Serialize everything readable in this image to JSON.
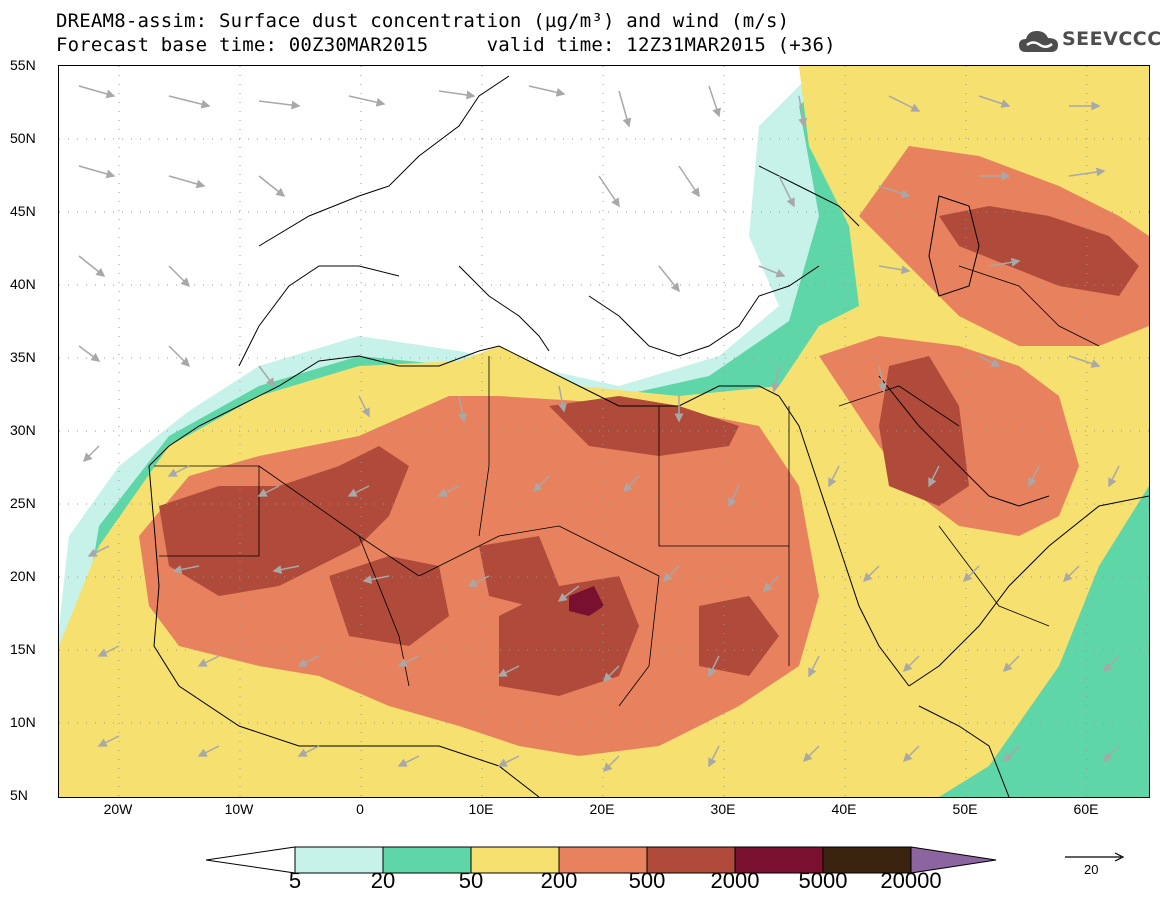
{
  "header": {
    "title_line1": "DREAM8-assim: Surface dust concentration (µg/m³) and wind (m/s)",
    "title_line2": "Forecast base time: 00Z30MAR2015     valid time: 12Z31MAR2015 (+36)"
  },
  "logo": {
    "text": "SEEVCCC"
  },
  "axes": {
    "lat_labels": [
      "55N",
      "50N",
      "45N",
      "40N",
      "35N",
      "30N",
      "25N",
      "20N",
      "15N",
      "10N",
      "5N"
    ],
    "lon_labels": [
      "20W",
      "10W",
      "0",
      "10E",
      "20E",
      "30E",
      "40E",
      "50E",
      "60E"
    ],
    "lat_range": [
      5,
      55
    ],
    "lon_range": [
      -25,
      65
    ]
  },
  "legend": {
    "levels": [
      "5",
      "20",
      "50",
      "200",
      "500",
      "2000",
      "5000",
      "20000"
    ],
    "colors": [
      "#ffffff",
      "#c6f2ea",
      "#5fd6a8",
      "#f5e070",
      "#e8825e",
      "#b04a3a",
      "#7a1030",
      "#3a2410",
      "#8c64a0"
    ],
    "wind_reference": "20"
  }
}
